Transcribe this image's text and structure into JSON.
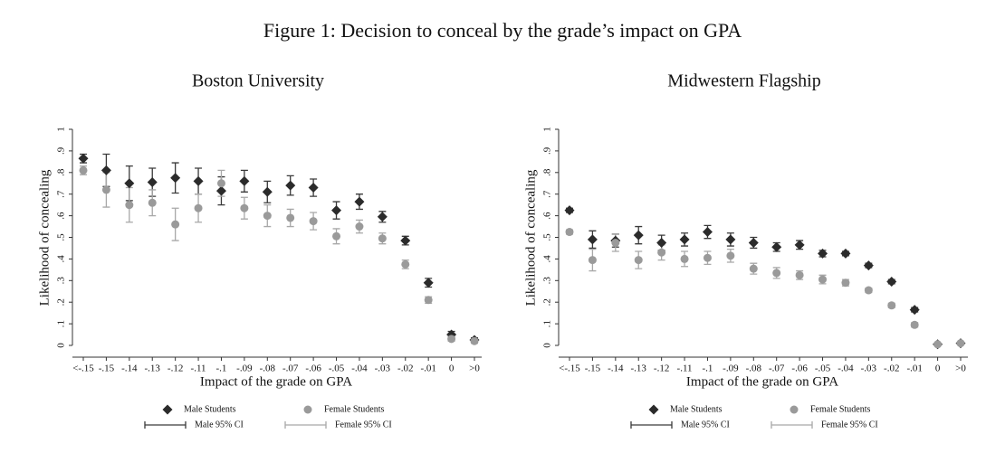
{
  "figure_title": "Figure 1: Decision to conceal by the grade’s impact on GPA",
  "chart_data": [
    {
      "type": "errorbar",
      "title": "Boston University",
      "x_label": "Impact of the grade on GPA",
      "y_label": "Likelihood of concealing",
      "categories": [
        "<-.15",
        "-.15",
        "-.14",
        "-.13",
        "-.12",
        "-.11",
        "-.1",
        "-.09",
        "-.08",
        "-.07",
        "-.06",
        "-.05",
        "-.04",
        "-.03",
        "-.02",
        "-.01",
        "0",
        ">0"
      ],
      "ylim": [
        0,
        1
      ],
      "yticks": [
        0,
        {
          "value": 0.1,
          "label": ".1"
        },
        {
          "value": 0.2,
          "label": ".2"
        },
        {
          "value": 0.3,
          "label": ".3"
        },
        {
          "value": 0.4,
          "label": ".4"
        },
        {
          "value": 0.5,
          "label": ".5"
        },
        {
          "value": 0.6,
          "label": ".6"
        },
        {
          "value": 0.7,
          "label": ".7"
        },
        {
          "value": 0.8,
          "label": ".8"
        },
        {
          "value": 0.9,
          "label": ".9"
        },
        1
      ],
      "series": [
        {
          "name": "Male Students",
          "ci_name": "Male 95% CI",
          "marker": "diamond",
          "color": "#2b2b2b",
          "ci_color": "#3a3a3a",
          "values": [
            0.865,
            0.81,
            0.75,
            0.755,
            0.775,
            0.76,
            0.715,
            0.76,
            0.71,
            0.74,
            0.73,
            0.625,
            0.665,
            0.595,
            0.485,
            0.29,
            0.05,
            0.025
          ],
          "errors": [
            0.02,
            0.075,
            0.08,
            0.065,
            0.07,
            0.06,
            0.065,
            0.05,
            0.05,
            0.045,
            0.04,
            0.04,
            0.035,
            0.025,
            0.02,
            0.02,
            0.015,
            0.01
          ]
        },
        {
          "name": "Female Students",
          "ci_name": "Female 95% CI",
          "marker": "circle",
          "color": "#9a9a9a",
          "ci_color": "#a8a8a8",
          "values": [
            0.81,
            0.72,
            0.65,
            0.66,
            0.56,
            0.635,
            0.75,
            0.635,
            0.6,
            0.59,
            0.575,
            0.505,
            0.55,
            0.495,
            0.375,
            0.21,
            0.03,
            0.02
          ],
          "errors": [
            0.02,
            0.08,
            0.08,
            0.06,
            0.075,
            0.065,
            0.06,
            0.05,
            0.05,
            0.04,
            0.04,
            0.035,
            0.03,
            0.025,
            0.02,
            0.015,
            0.01,
            0.01
          ]
        }
      ]
    },
    {
      "type": "errorbar",
      "title": "Midwestern Flagship",
      "x_label": "Impact of the grade on GPA",
      "y_label": "Likelihood of concealing",
      "categories": [
        "<-.15",
        "-.15",
        "-.14",
        "-.13",
        "-.12",
        "-.11",
        "-.1",
        "-.09",
        "-.08",
        "-.07",
        "-.06",
        "-.05",
        "-.04",
        "-.03",
        "-.02",
        "-.01",
        "0",
        ">0"
      ],
      "ylim": [
        0,
        1
      ],
      "yticks": [
        0,
        {
          "value": 0.1,
          "label": ".1"
        },
        {
          "value": 0.2,
          "label": ".2"
        },
        {
          "value": 0.3,
          "label": ".3"
        },
        {
          "value": 0.4,
          "label": ".4"
        },
        {
          "value": 0.5,
          "label": ".5"
        },
        {
          "value": 0.6,
          "label": ".6"
        },
        {
          "value": 0.7,
          "label": ".7"
        },
        {
          "value": 0.8,
          "label": ".8"
        },
        {
          "value": 0.9,
          "label": ".9"
        },
        1
      ],
      "series": [
        {
          "name": "Male Students",
          "ci_name": "Male 95% CI",
          "marker": "diamond",
          "color": "#2b2b2b",
          "ci_color": "#3a3a3a",
          "values": [
            0.625,
            0.49,
            0.485,
            0.51,
            0.475,
            0.49,
            0.525,
            0.49,
            0.475,
            0.455,
            0.465,
            0.425,
            0.425,
            0.37,
            0.295,
            0.165,
            0.005,
            0.01
          ],
          "errors": [
            0.01,
            0.04,
            0.03,
            0.04,
            0.035,
            0.03,
            0.03,
            0.03,
            0.025,
            0.02,
            0.02,
            0.015,
            0.01,
            0.01,
            0.01,
            0.01,
            0.005,
            0.005
          ]
        },
        {
          "name": "Female Students",
          "ci_name": "Female 95% CI",
          "marker": "circle",
          "color": "#9a9a9a",
          "ci_color": "#a8a8a8",
          "values": [
            0.525,
            0.395,
            0.475,
            0.395,
            0.43,
            0.4,
            0.405,
            0.415,
            0.355,
            0.335,
            0.325,
            0.305,
            0.29,
            0.255,
            0.185,
            0.095,
            0.005,
            0.01
          ],
          "errors": [
            0.01,
            0.05,
            0.04,
            0.04,
            0.035,
            0.035,
            0.03,
            0.03,
            0.025,
            0.025,
            0.02,
            0.02,
            0.015,
            0.01,
            0.01,
            0.01,
            0.005,
            0.005
          ]
        }
      ]
    }
  ]
}
